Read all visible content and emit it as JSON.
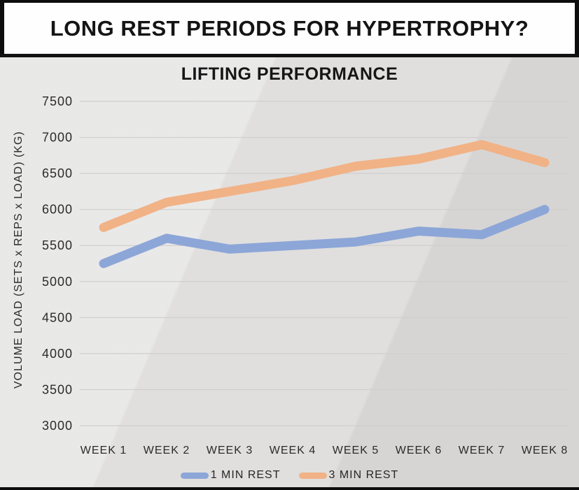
{
  "header": {
    "title": "LONG REST PERIODS FOR HYPERTROPHY?"
  },
  "chart_data": {
    "type": "line",
    "title": "LIFTING PERFORMANCE",
    "categories": [
      "WEEK 1",
      "WEEK 2",
      "WEEK 3",
      "WEEK 4",
      "WEEK 5",
      "WEEK 6",
      "WEEK 7",
      "WEEK 8"
    ],
    "series": [
      {
        "name": "1 MIN REST",
        "color": "#8da6d8",
        "values": [
          5250,
          5600,
          5450,
          5500,
          5550,
          5700,
          5650,
          6000
        ]
      },
      {
        "name": "3 MIN REST",
        "color": "#f1b286",
        "values": [
          5750,
          6100,
          6250,
          6400,
          6600,
          6700,
          6900,
          6650
        ]
      }
    ],
    "xlabel": "",
    "ylabel": "VOLUME LOAD (SETS x REPS x  LOAD) (KG)",
    "ylim": [
      3000,
      7500
    ],
    "yticks": [
      3000,
      3500,
      4000,
      4500,
      5000,
      5500,
      6000,
      6500,
      7000,
      7500
    ],
    "grid": true,
    "legend_position": "bottom"
  },
  "colors": {
    "series_1min": "#8da6d8",
    "series_3min": "#f1b286",
    "chart_background": "#e0dfde",
    "gridline": "#cfcecd",
    "text": "#2c2b2a",
    "frame": "#0d0d0d"
  }
}
